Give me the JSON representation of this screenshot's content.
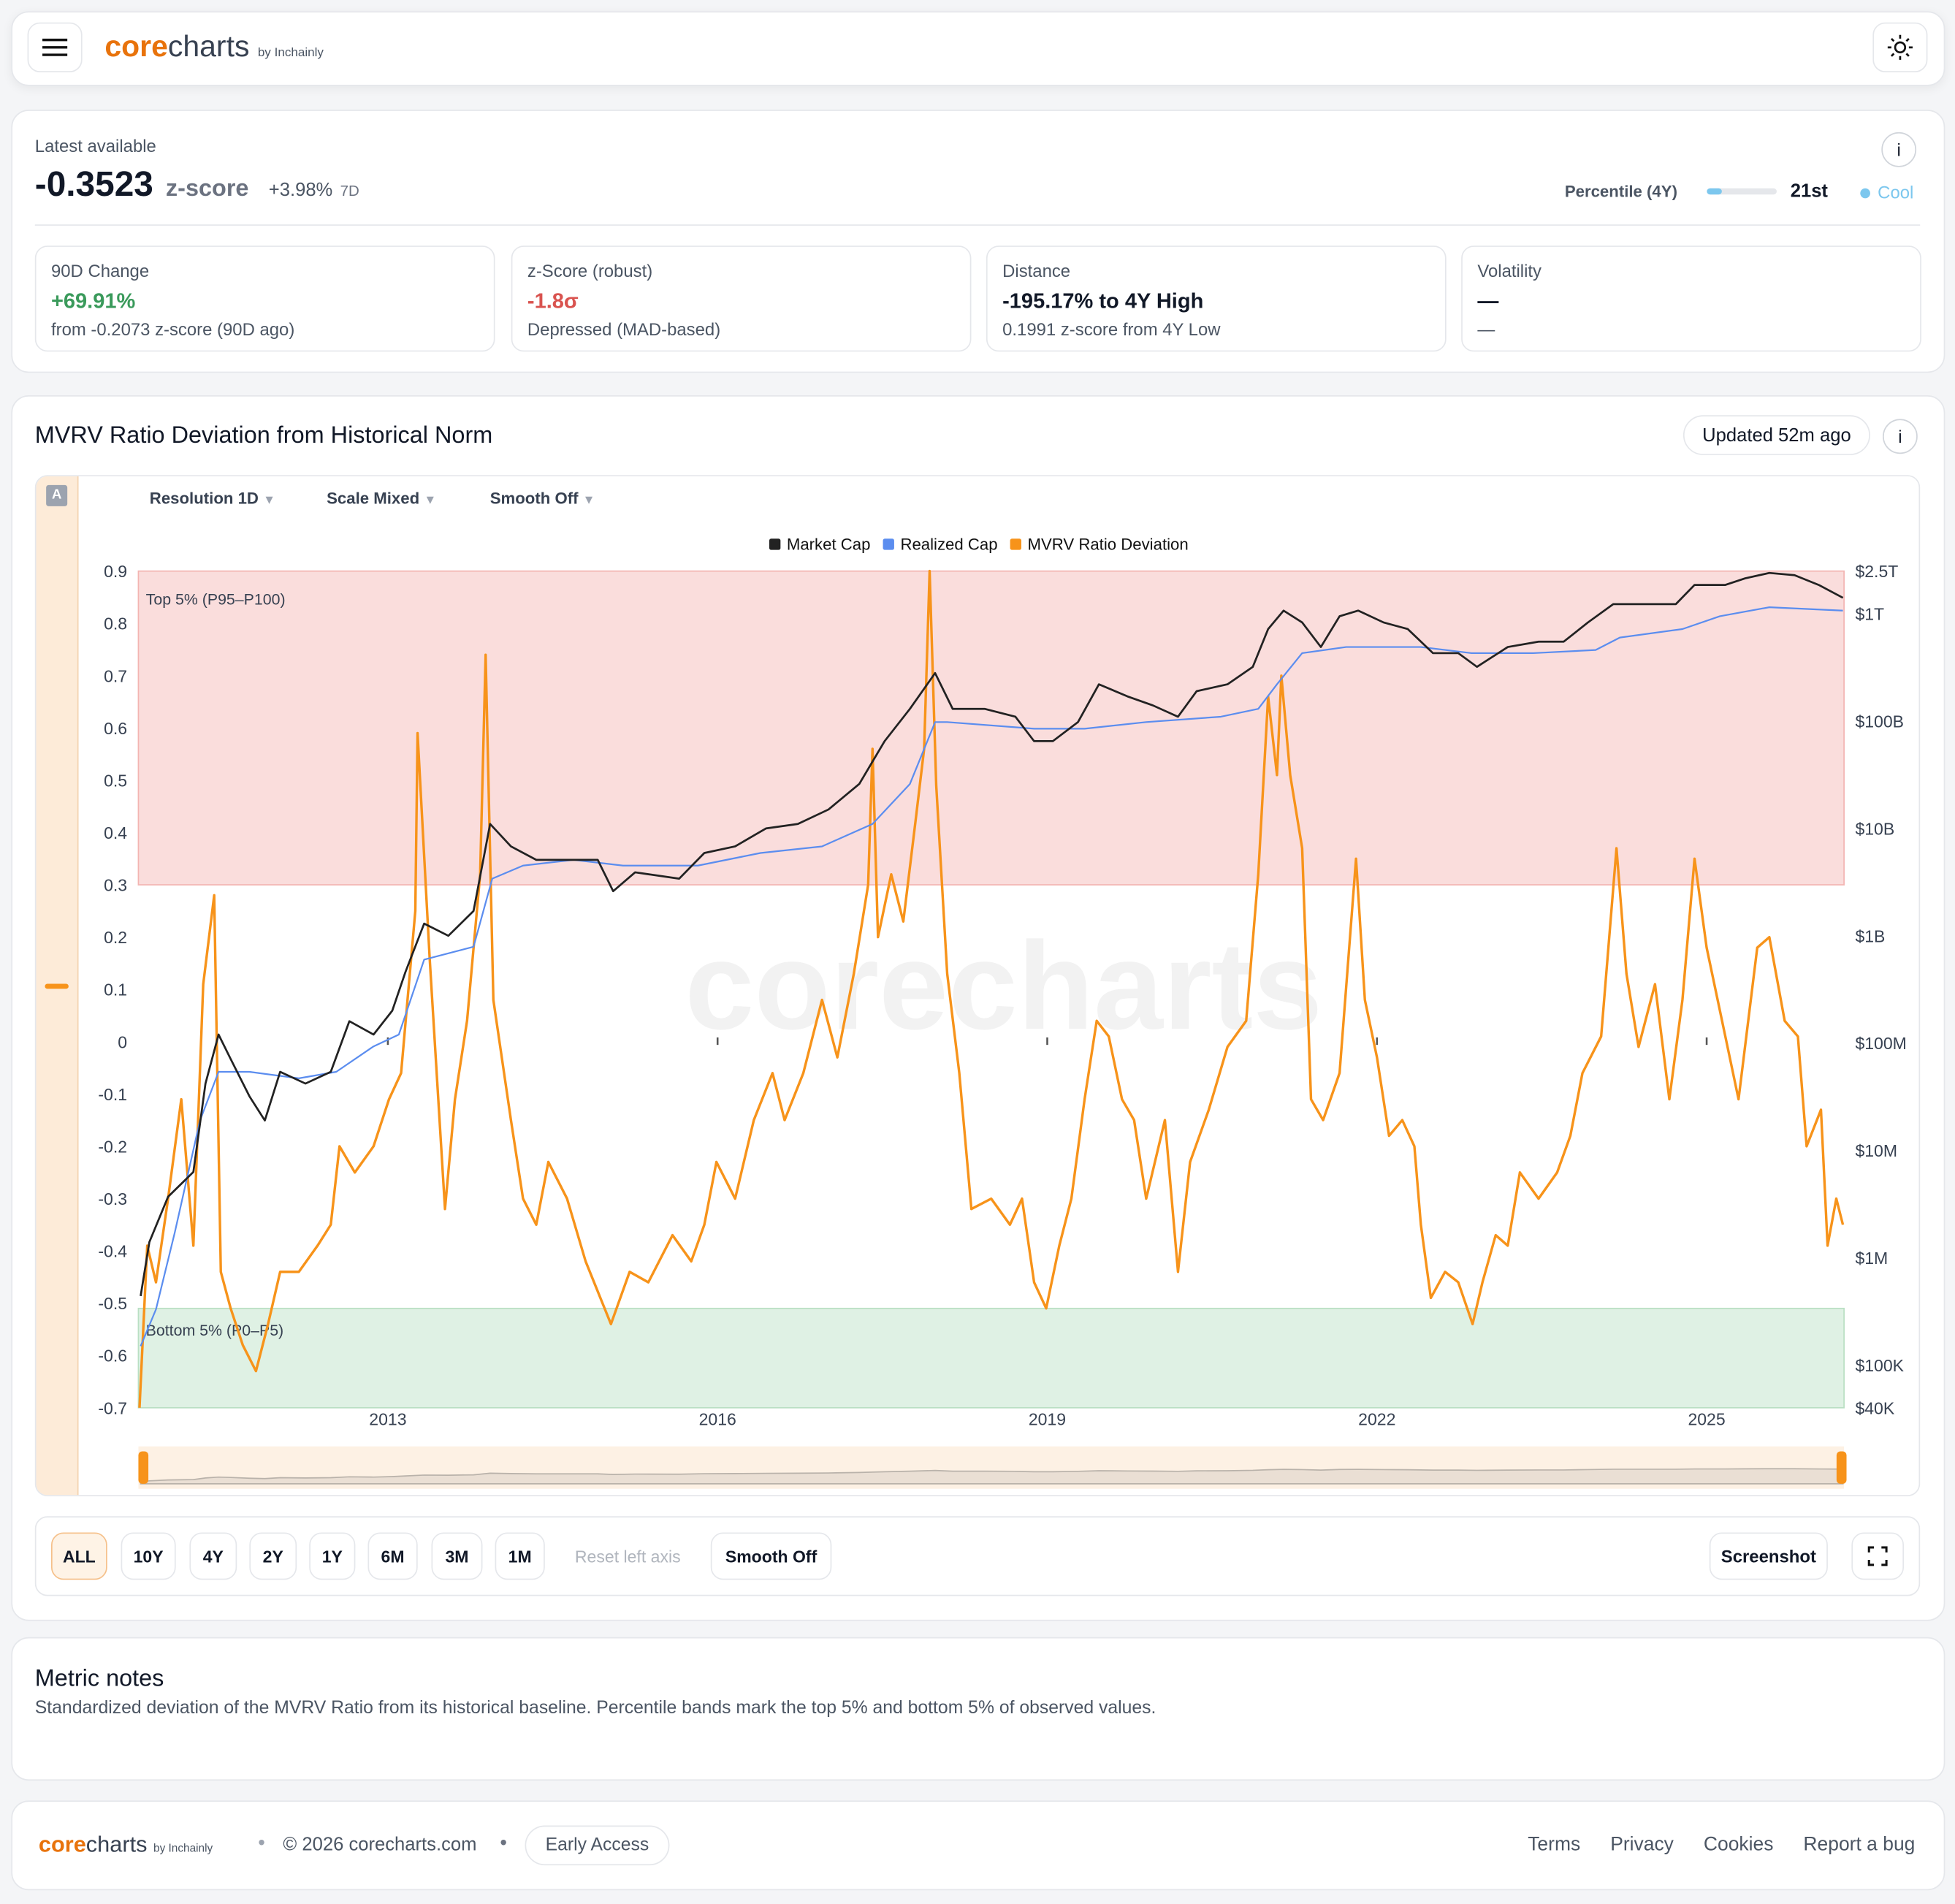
{
  "header": {
    "logo_core": "core",
    "logo_charts": "charts",
    "logo_by": "by Inchainly"
  },
  "summary": {
    "label": "Latest available",
    "value": "-0.3523",
    "unit": "z-score",
    "change": "+3.98%",
    "change_period": "7D",
    "percentile_label": "Percentile (4Y)",
    "percentile_fill": 21,
    "percentile_value": "21st",
    "regime": "Cool"
  },
  "cards": [
    {
      "title": "90D Change",
      "value": "+69.91%",
      "sub": "from -0.2073 z-score (90D ago)",
      "color": "#3a9a5b"
    },
    {
      "title": "z-Score (robust)",
      "value": "-1.8σ",
      "sub": "Depressed (MAD-based)",
      "color": "#d9534f"
    },
    {
      "title": "Distance",
      "value": "-195.17% to 4Y High",
      "sub": "0.1991 z-score from 4Y Low",
      "color": "#111827"
    },
    {
      "title": "Volatility",
      "value": "—",
      "sub": "—",
      "color": "#111827"
    }
  ],
  "chart_panel": {
    "title": "MVRV Ratio Deviation from Historical Norm",
    "updated": "Updated 52m ago",
    "axis_badge": "A",
    "controls": [
      "Resolution 1D",
      "Scale Mixed",
      "Smooth Off"
    ]
  },
  "chart_data": {
    "type": "line",
    "watermark": "corecharts",
    "xlim": [
      2010.73,
      2026.25
    ],
    "xticks": [
      2013,
      2016,
      2019,
      2022,
      2025
    ],
    "ylim": [
      -0.7,
      0.9
    ],
    "yticks": [
      -0.7,
      -0.6,
      -0.5,
      -0.4,
      -0.3,
      -0.2,
      -0.1,
      0,
      0.1,
      0.2,
      0.3,
      0.4,
      0.5,
      0.6,
      0.7,
      0.8,
      0.9
    ],
    "y2lim": [
      40000,
      2500000000000.0
    ],
    "y2log": true,
    "y2ticks": [
      {
        "value": 40000,
        "label": "$40K"
      },
      {
        "value": 100000.0,
        "label": "$100K"
      },
      {
        "value": 1000000.0,
        "label": "$1M"
      },
      {
        "value": 10000000.0,
        "label": "$10M"
      },
      {
        "value": 100000000.0,
        "label": "$100M"
      },
      {
        "value": 1000000000.0,
        "label": "$1B"
      },
      {
        "value": 10000000000.0,
        "label": "$10B"
      },
      {
        "value": 100000000000.0,
        "label": "$100B"
      },
      {
        "value": 1000000000000.0,
        "label": "$1T"
      },
      {
        "value": 2500000000000.0,
        "label": "$2.5T"
      }
    ],
    "bands": [
      {
        "label": "Top 5% (P95–P100)",
        "from": 0.3,
        "to": 0.9,
        "color": "#f3b4b1"
      },
      {
        "label": "Bottom 5% (P0–P5)",
        "from": -0.7,
        "to": -0.51,
        "color": "#b9dfc3"
      }
    ],
    "series": [
      {
        "name": "Market Cap",
        "color": "#222222",
        "axis": "y2",
        "x": [
          2010.75,
          2010.83,
          2011.0,
          2011.23,
          2011.34,
          2011.46,
          2011.57,
          2011.74,
          2011.88,
          2012.02,
          2012.25,
          2012.48,
          2012.65,
          2012.87,
          2013.04,
          2013.16,
          2013.33,
          2013.55,
          2013.78,
          2013.93,
          2014.12,
          2014.35,
          2014.69,
          2014.91,
          2015.05,
          2015.25,
          2015.65,
          2015.88,
          2016.16,
          2016.44,
          2016.73,
          2017.01,
          2017.29,
          2017.52,
          2017.75,
          2017.98,
          2018.14,
          2018.43,
          2018.71,
          2018.88,
          2019.05,
          2019.28,
          2019.47,
          2019.73,
          2019.96,
          2020.19,
          2020.36,
          2020.64,
          2020.87,
          2021.01,
          2021.15,
          2021.32,
          2021.49,
          2021.66,
          2021.83,
          2022.06,
          2022.28,
          2022.51,
          2022.74,
          2022.91,
          2023.19,
          2023.47,
          2023.7,
          2023.92,
          2024.15,
          2024.44,
          2024.72,
          2024.89,
          2025.17,
          2025.35,
          2025.57,
          2025.8,
          2026.02,
          2026.24
        ],
        "values": [
          440000.0,
          1400000.0,
          3700000.0,
          6300000.0,
          42000000.0,
          120000000.0,
          71000000.0,
          32000000.0,
          19000000.0,
          54000000.0,
          42000000.0,
          54000000.0,
          160000000.0,
          120000000.0,
          200000000.0,
          460000000.0,
          1300000000.0,
          1000000000.0,
          1700000000.0,
          11000000000.0,
          6800000000.0,
          5100000000.0,
          5100000000.0,
          5100000000.0,
          2600000000.0,
          3900000000.0,
          3400000000.0,
          5900000000.0,
          6800000000.0,
          10000000000.0,
          11000000000.0,
          15000000000.0,
          26000000000.0,
          65000000000.0,
          130000000000.0,
          280000000000.0,
          130000000000.0,
          130000000000.0,
          110000000000.0,
          65000000000.0,
          65000000000.0,
          98000000000.0,
          220000000000.0,
          170000000000.0,
          140000000000.0,
          110000000000.0,
          190000000000.0,
          220000000000.0,
          320000000000.0,
          720000000000.0,
          1070000000000.0,
          830000000000.0,
          490000000000.0,
          950000000000.0,
          1070000000000.0,
          830000000000.0,
          720000000000.0,
          430000000000.0,
          430000000000.0,
          320000000000.0,
          490000000000.0,
          550000000000.0,
          550000000000.0,
          830000000000.0,
          1230000000000.0,
          1230000000000.0,
          1230000000000.0,
          1860000000000.0,
          1860000000000.0,
          2140000000000.0,
          2400000000000.0,
          2290000000000.0,
          1860000000000.0,
          1410000000000.0
        ]
      },
      {
        "name": "Realized Cap",
        "color": "#5b8def",
        "axis": "y2",
        "x": [
          2010.75,
          2010.89,
          2011.06,
          2011.29,
          2011.46,
          2011.74,
          2012.19,
          2012.53,
          2012.87,
          2013.1,
          2013.33,
          2013.78,
          2013.95,
          2014.23,
          2014.69,
          2015.14,
          2015.82,
          2016.39,
          2016.95,
          2017.41,
          2017.75,
          2017.98,
          2018.09,
          2018.88,
          2019.34,
          2019.9,
          2020.58,
          2020.92,
          2021.09,
          2021.32,
          2021.72,
          2021.94,
          2022.4,
          2022.86,
          2023.42,
          2023.99,
          2024.21,
          2024.78,
          2025.12,
          2025.57,
          2026.24
        ],
        "values": [
          150000.0,
          330000.0,
          1700000.0,
          19000000.0,
          54000000.0,
          54000000.0,
          47000000.0,
          54000000.0,
          93000000.0,
          120000000.0,
          600000000.0,
          790000000.0,
          3400000000.0,
          4500000000.0,
          5100000000.0,
          4500000000.0,
          4500000000.0,
          5900000000.0,
          6800000000.0,
          11000000000.0,
          26000000000.0,
          98000000000.0,
          98000000000.0,
          85000000000.0,
          85000000000.0,
          98000000000.0,
          110000000000.0,
          130000000000.0,
          220000000000.0,
          430000000000.0,
          490000000000.0,
          490000000000.0,
          490000000000.0,
          430000000000.0,
          430000000000.0,
          460000000000.0,
          600000000000.0,
          720000000000.0,
          950000000000.0,
          1150000000000.0,
          1070000000000.0
        ]
      },
      {
        "name": "MVRV Ratio Deviation",
        "color": "#f7931a",
        "x": [
          2010.74,
          2010.81,
          2010.89,
          2011.0,
          2011.12,
          2011.23,
          2011.32,
          2011.42,
          2011.48,
          2011.57,
          2011.68,
          2011.8,
          2011.91,
          2012.02,
          2012.19,
          2012.36,
          2012.48,
          2012.56,
          2012.7,
          2012.87,
          2013.01,
          2013.12,
          2013.25,
          2013.27,
          2013.38,
          2013.52,
          2013.61,
          2013.72,
          2013.84,
          2013.89,
          2013.96,
          2014.12,
          2014.23,
          2014.35,
          2014.46,
          2014.63,
          2014.8,
          2015.03,
          2015.2,
          2015.37,
          2015.59,
          2015.76,
          2015.88,
          2015.99,
          2016.16,
          2016.33,
          2016.5,
          2016.61,
          2016.78,
          2016.95,
          2017.09,
          2017.24,
          2017.37,
          2017.41,
          2017.46,
          2017.58,
          2017.69,
          2017.8,
          2017.88,
          2017.93,
          2017.99,
          2018.09,
          2018.2,
          2018.31,
          2018.49,
          2018.66,
          2018.77,
          2018.88,
          2018.99,
          2019.11,
          2019.22,
          2019.34,
          2019.45,
          2019.56,
          2019.68,
          2019.79,
          2019.9,
          2020.07,
          2020.19,
          2020.3,
          2020.47,
          2020.64,
          2020.81,
          2020.92,
          2021.01,
          2021.09,
          2021.13,
          2021.21,
          2021.32,
          2021.4,
          2021.51,
          2021.66,
          2021.81,
          2021.89,
          2022.0,
          2022.11,
          2022.23,
          2022.34,
          2022.4,
          2022.49,
          2022.62,
          2022.74,
          2022.87,
          2022.96,
          2023.08,
          2023.19,
          2023.3,
          2023.47,
          2023.64,
          2023.76,
          2023.87,
          2024.04,
          2024.18,
          2024.27,
          2024.38,
          2024.53,
          2024.66,
          2024.78,
          2024.89,
          2025.0,
          2025.17,
          2025.29,
          2025.46,
          2025.57,
          2025.71,
          2025.83,
          2025.91,
          2026.04,
          2026.1,
          2026.18,
          2026.24
        ],
        "values": [
          -0.7,
          -0.39,
          -0.46,
          -0.3,
          -0.11,
          -0.39,
          0.11,
          0.28,
          -0.44,
          -0.51,
          -0.58,
          -0.63,
          -0.54,
          -0.44,
          -0.44,
          -0.39,
          -0.35,
          -0.2,
          -0.25,
          -0.2,
          -0.11,
          -0.06,
          0.25,
          0.59,
          0.16,
          -0.32,
          -0.11,
          0.04,
          0.32,
          0.74,
          0.08,
          -0.15,
          -0.3,
          -0.35,
          -0.23,
          -0.3,
          -0.42,
          -0.54,
          -0.44,
          -0.46,
          -0.37,
          -0.42,
          -0.35,
          -0.23,
          -0.3,
          -0.15,
          -0.06,
          -0.15,
          -0.06,
          0.08,
          -0.03,
          0.13,
          0.3,
          0.56,
          0.2,
          0.32,
          0.23,
          0.42,
          0.56,
          0.9,
          0.49,
          0.13,
          -0.06,
          -0.32,
          -0.3,
          -0.35,
          -0.3,
          -0.46,
          -0.51,
          -0.39,
          -0.3,
          -0.11,
          0.04,
          0.01,
          -0.11,
          -0.15,
          -0.3,
          -0.15,
          -0.44,
          -0.23,
          -0.13,
          -0.01,
          0.04,
          0.32,
          0.66,
          0.51,
          0.7,
          0.51,
          0.37,
          -0.11,
          -0.15,
          -0.06,
          0.35,
          0.08,
          -0.03,
          -0.18,
          -0.15,
          -0.2,
          -0.35,
          -0.49,
          -0.44,
          -0.46,
          -0.54,
          -0.46,
          -0.37,
          -0.39,
          -0.25,
          -0.3,
          -0.25,
          -0.18,
          -0.06,
          0.01,
          0.37,
          0.13,
          -0.01,
          0.11,
          -0.11,
          0.08,
          0.35,
          0.18,
          0.01,
          -0.11,
          0.18,
          0.2,
          0.04,
          0.01,
          -0.2,
          -0.13,
          -0.39,
          -0.3,
          -0.35
        ]
      }
    ]
  },
  "range_buttons": [
    "ALL",
    "10Y",
    "4Y",
    "2Y",
    "1Y",
    "6M",
    "3M",
    "1M"
  ],
  "reset": "Reset left axis",
  "smooth": "Smooth Off",
  "screenshot": "Screenshot",
  "notes": {
    "title": "Metric notes",
    "text": "Standardized deviation of the MVRV Ratio from its historical baseline. Percentile bands mark the top 5% and bottom 5% of observed values."
  },
  "footer": {
    "copyright": "© 2026 corecharts.com",
    "badge": "Early Access",
    "links": [
      "Terms",
      "Privacy",
      "Cookies",
      "Report a bug"
    ]
  }
}
